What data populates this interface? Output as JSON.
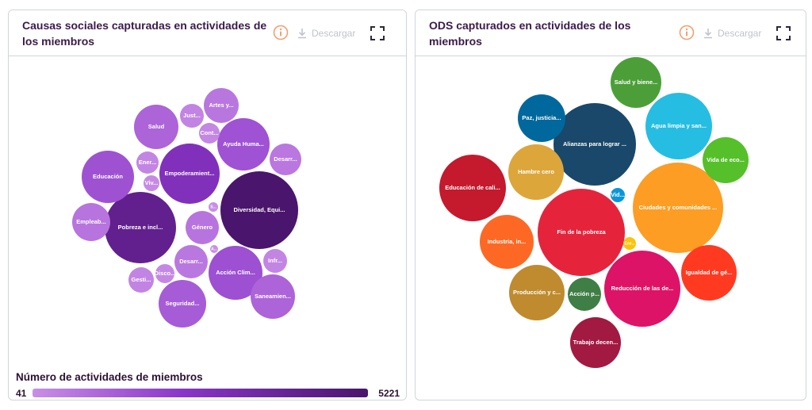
{
  "panels": [
    {
      "title": "Causas sociales capturadas en actividades de los miembros",
      "download_label": "Descargar",
      "icons": {
        "info": "info-icon",
        "download": "download-icon",
        "expand": "expand-icon"
      },
      "legend": {
        "title": "Número de actividades de miembros",
        "min": "41",
        "max": "5221",
        "colors": [
          "#c98ee6",
          "#8a35c9",
          "#4a156c"
        ]
      }
    },
    {
      "title": "ODS capturados en actividades de los miembros",
      "download_label": "Descargar",
      "icons": {
        "info": "info-icon",
        "download": "download-icon",
        "expand": "expand-icon"
      }
    }
  ],
  "colors": {
    "accent_info": "#f0a070",
    "border": "#cfd5dc",
    "disabled": "#bfc4ca"
  },
  "chart_data": [
    {
      "type": "bubble",
      "color_scale": {
        "min": 41,
        "max": 5221,
        "colors": [
          "#c98ee6",
          "#8a35c9",
          "#4a156c"
        ]
      },
      "bubbles": [
        {
          "label": "Diversidad, Equi...",
          "value": 5221
        },
        {
          "label": "Pobreza e incl...",
          "value": 4300
        },
        {
          "label": "Empoderamient...",
          "value": 3000
        },
        {
          "label": "Acción Clim...",
          "value": 1850
        },
        {
          "label": "Ayuda Huma...",
          "value": 1780
        },
        {
          "label": "Educación",
          "value": 1800
        },
        {
          "label": "Seguridad...",
          "value": 1500
        },
        {
          "label": "Saneamien...",
          "value": 1250
        },
        {
          "label": "Salud",
          "value": 1250
        },
        {
          "label": "Empleab...",
          "value": 800
        },
        {
          "label": "Desarr...",
          "value": 700
        },
        {
          "label": "Género",
          "value": 800
        },
        {
          "label": "Desarr...",
          "value": 680
        },
        {
          "label": "Artes y...",
          "value": 720
        },
        {
          "label": "Just...",
          "value": 330
        },
        {
          "label": "Ener...",
          "value": 300
        },
        {
          "label": "Gesti...",
          "value": 330
        },
        {
          "label": "Infr...",
          "value": 300
        },
        {
          "label": "Cont...",
          "value": 250
        },
        {
          "label": "Disco...",
          "value": 230
        },
        {
          "label": "Viv...",
          "value": 150
        },
        {
          "label": "S...",
          "value": 60
        },
        {
          "label": "A...",
          "value": 41
        }
      ]
    },
    {
      "type": "bubble",
      "bubbles": [
        {
          "label": "Ciudades y comunidades ...",
          "color": "#fd9d24"
        },
        {
          "label": "Fin de la pobreza",
          "color": "#e5243b"
        },
        {
          "label": "Alianzas para lograr ...",
          "color": "#19486a"
        },
        {
          "label": "Reducción de las de...",
          "color": "#dd1367"
        },
        {
          "label": "Agua limpia y san...",
          "color": "#26bde2"
        },
        {
          "label": "Educación de cali...",
          "color": "#c5192d"
        },
        {
          "label": "Producción y c...",
          "color": "#bf8b2e"
        },
        {
          "label": "Igualdad de gé...",
          "color": "#ff3a21"
        },
        {
          "label": "Hambre cero",
          "color": "#dda63a"
        },
        {
          "label": "Industria, in...",
          "color": "#fd6925"
        },
        {
          "label": "Trabajo decen...",
          "color": "#a21942"
        },
        {
          "label": "Salud y biene...",
          "color": "#4c9f38"
        },
        {
          "label": "Paz, justicia...",
          "color": "#00689d"
        },
        {
          "label": "Vida de eco...",
          "color": "#56c02b"
        },
        {
          "label": "Acción p...",
          "color": "#3f7e44"
        },
        {
          "label": "Vid...",
          "color": "#0a97d9"
        },
        {
          "label": "Ene...",
          "color": "#fcc30b"
        }
      ]
    }
  ]
}
